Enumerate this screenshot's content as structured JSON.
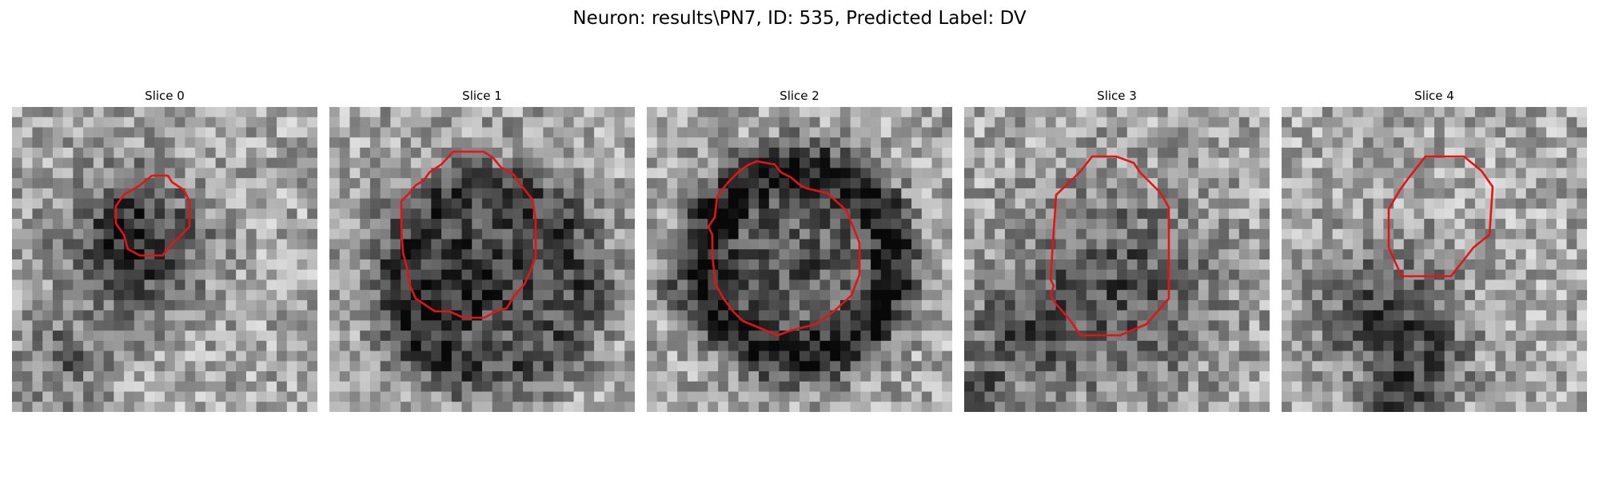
{
  "figure": {
    "suptitle": "Neuron: results\\PN7, ID: 535, Predicted Label: DV"
  },
  "panels": [
    {
      "title": "Slice 0"
    },
    {
      "title": "Slice 1"
    },
    {
      "title": "Slice 2"
    },
    {
      "title": "Slice 3"
    },
    {
      "title": "Slice 4"
    }
  ],
  "colors": {
    "contour": "#e41414",
    "background": "#ffffff"
  }
}
